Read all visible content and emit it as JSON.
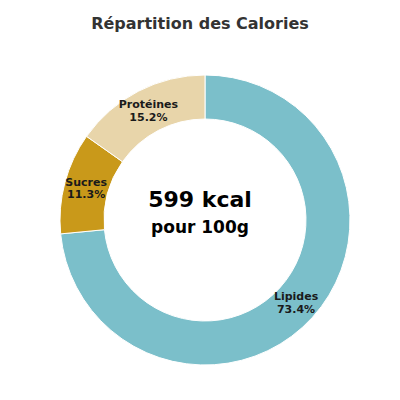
{
  "chart_data": {
    "type": "pie",
    "title": "Répartition des Calories",
    "categories": [
      "Lipides",
      "Sucres",
      "Protéines"
    ],
    "values": [
      73.4,
      11.3,
      15.2
    ],
    "value_labels": [
      "73.4%",
      "11.3%",
      "15.2%"
    ],
    "colors": [
      "#7bbfca",
      "#c9991a",
      "#e8d5aa"
    ],
    "data_labels": true,
    "annotations": [
      "599 kcal",
      "pour 100g"
    ]
  }
}
